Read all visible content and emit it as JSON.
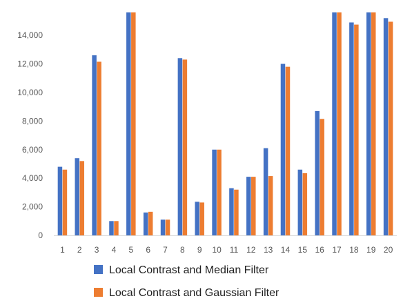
{
  "chart_data": {
    "type": "bar",
    "title": "",
    "xlabel": "",
    "ylabel": "",
    "ylim": [
      0,
      15600
    ],
    "y_ticks": [
      0,
      2000,
      4000,
      6000,
      8000,
      10000,
      12000,
      14000
    ],
    "y_tick_labels": [
      "0",
      "2,000",
      "4,000",
      "6,000",
      "8,000",
      "10,000",
      "12,000",
      "14,000"
    ],
    "categories": [
      "1",
      "2",
      "3",
      "4",
      "5",
      "6",
      "7",
      "8",
      "9",
      "10",
      "11",
      "12",
      "13",
      "14",
      "15",
      "16",
      "17",
      "18",
      "19",
      "20"
    ],
    "series": [
      {
        "name": "Local Contrast and Median Filter",
        "color": "#4472c4",
        "values": [
          4800,
          5400,
          12600,
          1000,
          15600,
          1600,
          1100,
          12400,
          2350,
          6000,
          3300,
          4100,
          6100,
          12000,
          4600,
          8700,
          15600,
          14900,
          15600,
          15200
        ]
      },
      {
        "name": "Local Contrast and Gaussian Filter",
        "color": "#ed7d31",
        "values": [
          4600,
          5200,
          12150,
          1000,
          15600,
          1650,
          1100,
          12300,
          2300,
          6000,
          3200,
          4100,
          4150,
          11800,
          4350,
          8150,
          15600,
          14750,
          15600,
          14950
        ]
      }
    ],
    "grid": false,
    "legend_position": "bottom"
  }
}
